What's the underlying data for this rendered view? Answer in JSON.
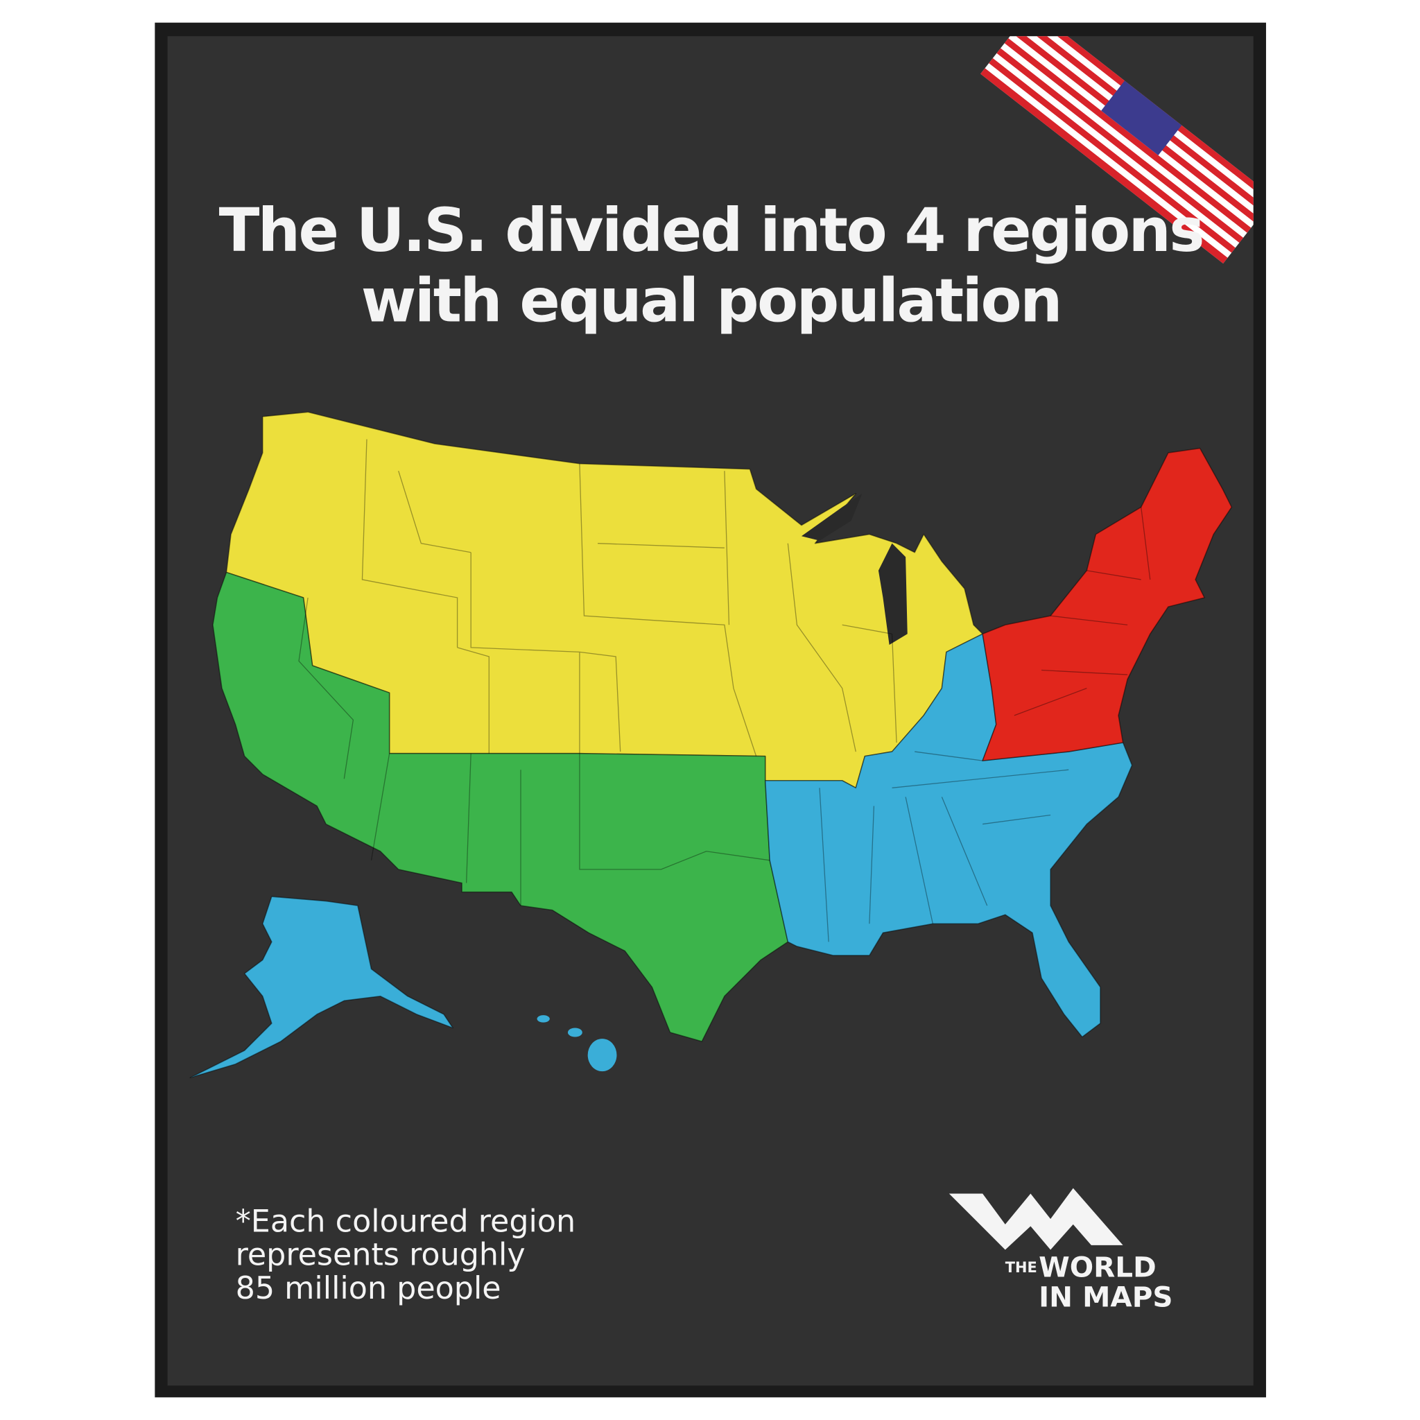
{
  "title": {
    "lines": [
      "The U.S. divided into 4 regions",
      "with equal population"
    ]
  },
  "note": {
    "lines": [
      "*Each coloured region",
      "represents roughly",
      "85 million people"
    ]
  },
  "logo": {
    "small": "THE",
    "line1": "WORLD",
    "line2": "IN MAPS"
  }
}
